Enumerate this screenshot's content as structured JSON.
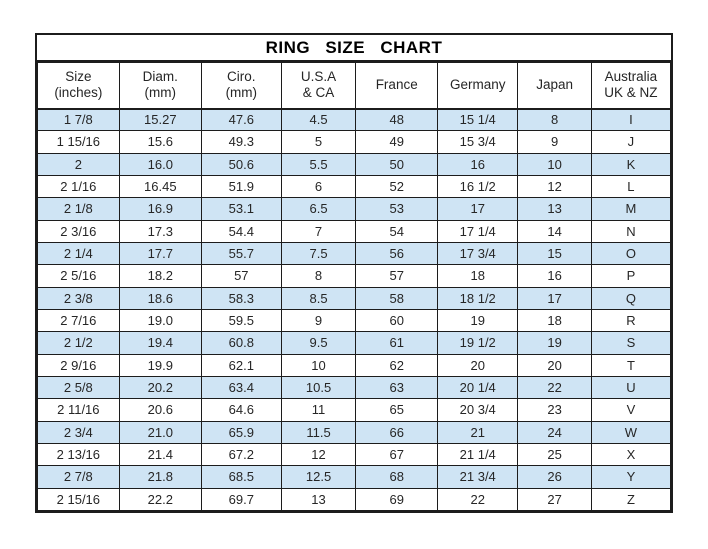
{
  "title": "RING SIZE CHART",
  "colors": {
    "row_stripe": "#cfe4f4",
    "border": "#1c1c1c",
    "text": "#262626",
    "background": "#ffffff"
  },
  "chart_data": {
    "type": "table",
    "title": "RING SIZE CHART",
    "columns": [
      [
        "Size",
        "(inches)"
      ],
      [
        "Diam.",
        "(mm)"
      ],
      [
        "Ciro.",
        "(mm)"
      ],
      [
        "U.S.A",
        "& CA"
      ],
      [
        "France"
      ],
      [
        "Germany"
      ],
      [
        "Japan"
      ],
      [
        "Australia",
        "UK & NZ"
      ]
    ],
    "rows": [
      [
        "1 7/8",
        "15.27",
        "47.6",
        "4.5",
        "48",
        "15 1/4",
        "8",
        "I"
      ],
      [
        "1 15/16",
        "15.6",
        "49.3",
        "5",
        "49",
        "15 3/4",
        "9",
        "J"
      ],
      [
        "2",
        "16.0",
        "50.6",
        "5.5",
        "50",
        "16",
        "10",
        "K"
      ],
      [
        "2 1/16",
        "16.45",
        "51.9",
        "6",
        "52",
        "16 1/2",
        "12",
        "L"
      ],
      [
        "2 1/8",
        "16.9",
        "53.1",
        "6.5",
        "53",
        "17",
        "13",
        "M"
      ],
      [
        "2 3/16",
        "17.3",
        "54.4",
        "7",
        "54",
        "17 1/4",
        "14",
        "N"
      ],
      [
        "2 1/4",
        "17.7",
        "55.7",
        "7.5",
        "56",
        "17 3/4",
        "15",
        "O"
      ],
      [
        "2 5/16",
        "18.2",
        "57",
        "8",
        "57",
        "18",
        "16",
        "P"
      ],
      [
        "2 3/8",
        "18.6",
        "58.3",
        "8.5",
        "58",
        "18 1/2",
        "17",
        "Q"
      ],
      [
        "2 7/16",
        "19.0",
        "59.5",
        "9",
        "60",
        "19",
        "18",
        "R"
      ],
      [
        "2 1/2",
        "19.4",
        "60.8",
        "9.5",
        "61",
        "19 1/2",
        "19",
        "S"
      ],
      [
        "2 9/16",
        "19.9",
        "62.1",
        "10",
        "62",
        "20",
        "20",
        "T"
      ],
      [
        "2 5/8",
        "20.2",
        "63.4",
        "10.5",
        "63",
        "20 1/4",
        "22",
        "U"
      ],
      [
        "2 11/16",
        "20.6",
        "64.6",
        "11",
        "65",
        "20 3/4",
        "23",
        "V"
      ],
      [
        "2 3/4",
        "21.0",
        "65.9",
        "11.5",
        "66",
        "21",
        "24",
        "W"
      ],
      [
        "2 13/16",
        "21.4",
        "67.2",
        "12",
        "67",
        "21 1/4",
        "25",
        "X"
      ],
      [
        "2 7/8",
        "21.8",
        "68.5",
        "12.5",
        "68",
        "21 3/4",
        "26",
        "Y"
      ],
      [
        "2 15/16",
        "22.2",
        "69.7",
        "13",
        "69",
        "22",
        "27",
        "Z"
      ]
    ]
  }
}
